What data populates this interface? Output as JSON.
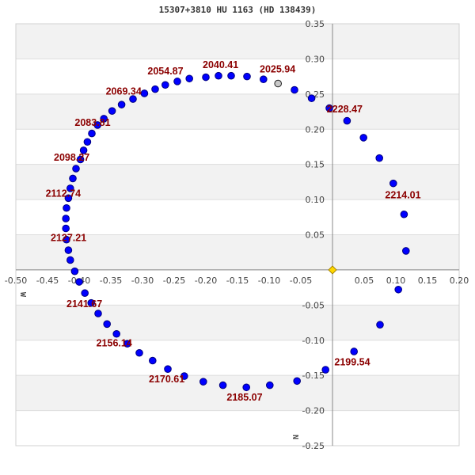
{
  "title": "15307+3810 HU 1163 (HD 138439)",
  "colors": {
    "point": "#0000ff",
    "point_stroke": "#000080",
    "first_point": "#c8c8c8",
    "origin": "#ffd700",
    "label": "#8b0000",
    "band": "#f2f2f2",
    "grid": "#dddddd",
    "axis": "#888888"
  },
  "directions": {
    "west": "W",
    "north": "N"
  },
  "chart_data": {
    "type": "scatter",
    "title": "15307+3810 HU 1163 (HD 138439)",
    "xlabel": "",
    "ylabel": "",
    "xlim": [
      -0.5,
      0.2
    ],
    "ylim": [
      -0.25,
      0.35
    ],
    "xticks": [
      "-0.50",
      "-0.45",
      "-0.40",
      "-0.35",
      "-0.30",
      "-0.25",
      "-0.20",
      "-0.15",
      "-0.10",
      "-0.05",
      "0.05",
      "0.10",
      "0.15",
      "0.20"
    ],
    "yticks": [
      "0.35",
      "0.30",
      "0.25",
      "0.20",
      "0.15",
      "0.10",
      "0.05",
      "-0.05",
      "-0.10",
      "-0.15",
      "-0.20",
      "-0.25"
    ],
    "grid": true,
    "origin": [
      0,
      0
    ],
    "first_point": [
      -0.086,
      0.265
    ],
    "points": [
      [
        -0.06,
        0.256
      ],
      [
        -0.033,
        0.244
      ],
      [
        -0.005,
        0.23
      ],
      [
        0.023,
        0.212
      ],
      [
        0.049,
        0.188
      ],
      [
        0.074,
        0.159
      ],
      [
        0.096,
        0.123
      ],
      [
        0.113,
        0.079
      ],
      [
        0.116,
        0.027
      ],
      [
        0.104,
        -0.028
      ],
      [
        0.075,
        -0.078
      ],
      [
        0.034,
        -0.116
      ],
      [
        -0.011,
        -0.142
      ],
      [
        -0.056,
        -0.158
      ],
      [
        -0.099,
        -0.164
      ],
      [
        -0.136,
        -0.167
      ],
      [
        -0.173,
        -0.164
      ],
      [
        -0.204,
        -0.159
      ],
      [
        -0.234,
        -0.151
      ],
      [
        -0.26,
        -0.141
      ],
      [
        -0.284,
        -0.129
      ],
      [
        -0.305,
        -0.118
      ],
      [
        -0.324,
        -0.105
      ],
      [
        -0.341,
        -0.091
      ],
      [
        -0.356,
        -0.077
      ],
      [
        -0.37,
        -0.062
      ],
      [
        -0.381,
        -0.047
      ],
      [
        -0.391,
        -0.033
      ],
      [
        -0.4,
        -0.017
      ],
      [
        -0.407,
        -0.002
      ],
      [
        -0.414,
        0.014
      ],
      [
        -0.417,
        0.028
      ],
      [
        -0.42,
        0.043
      ],
      [
        -0.421,
        0.059
      ],
      [
        -0.421,
        0.073
      ],
      [
        -0.42,
        0.088
      ],
      [
        -0.417,
        0.102
      ],
      [
        -0.414,
        0.116
      ],
      [
        -0.41,
        0.13
      ],
      [
        -0.405,
        0.144
      ],
      [
        -0.398,
        0.157
      ],
      [
        -0.393,
        0.17
      ],
      [
        -0.387,
        0.182
      ],
      [
        -0.38,
        0.194
      ],
      [
        -0.371,
        0.206
      ],
      [
        -0.361,
        0.215
      ],
      [
        -0.348,
        0.226
      ],
      [
        -0.333,
        0.235
      ],
      [
        -0.315,
        0.243
      ],
      [
        -0.297,
        0.251
      ],
      [
        -0.28,
        0.257
      ],
      [
        -0.264,
        0.263
      ],
      [
        -0.245,
        0.268
      ],
      [
        -0.226,
        0.272
      ],
      [
        -0.2,
        0.274
      ],
      [
        -0.18,
        0.276
      ],
      [
        -0.16,
        0.276
      ],
      [
        -0.135,
        0.275
      ],
      [
        -0.109,
        0.271
      ]
    ],
    "annotations": [
      {
        "text": "2025.94",
        "x": -0.115,
        "y": 0.281
      },
      {
        "text": "2040.41",
        "x": -0.205,
        "y": 0.287
      },
      {
        "text": "2054.87",
        "x": -0.292,
        "y": 0.278
      },
      {
        "text": "2069.34",
        "x": -0.358,
        "y": 0.249
      },
      {
        "text": "2083.81",
        "x": -0.407,
        "y": 0.205
      },
      {
        "text": "2098.27",
        "x": -0.44,
        "y": 0.155
      },
      {
        "text": "2112.74",
        "x": -0.453,
        "y": 0.104
      },
      {
        "text": "2127.21",
        "x": -0.445,
        "y": 0.041
      },
      {
        "text": "2141.67",
        "x": -0.42,
        "y": -0.053
      },
      {
        "text": "2156.14",
        "x": -0.373,
        "y": -0.109
      },
      {
        "text": "2170.61",
        "x": -0.29,
        "y": -0.16
      },
      {
        "text": "2185.07",
        "x": -0.167,
        "y": -0.186
      },
      {
        "text": "2199.54",
        "x": 0.003,
        "y": -0.136
      },
      {
        "text": "2214.01",
        "x": 0.083,
        "y": 0.102
      },
      {
        "text": "2228.47",
        "x": -0.009,
        "y": 0.224
      }
    ]
  }
}
